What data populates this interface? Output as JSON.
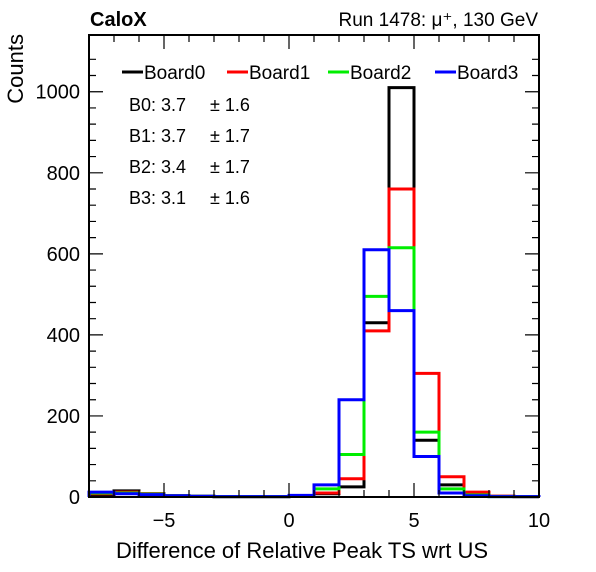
{
  "header": {
    "left": "CaloX",
    "right": "Run 1478:   μ⁺, 130 GeV"
  },
  "stats": [
    {
      "label": "B0: 3.7",
      "err": "± 1.6"
    },
    {
      "label": "B1: 3.7",
      "err": "± 1.7"
    },
    {
      "label": "B2: 3.4",
      "err": "± 1.7"
    },
    {
      "label": "B3: 3.1",
      "err": "± 1.6"
    }
  ],
  "chart_data": {
    "type": "histogram",
    "xlabel": "Difference of Relative Peak TS wrt US",
    "ylabel": "Counts",
    "xlim": [
      -8,
      10
    ],
    "ylim": [
      0,
      1140
    ],
    "xticks": [
      -5,
      0,
      5,
      10
    ],
    "xtick_labels": [
      "−5",
      "0",
      "5",
      "10"
    ],
    "yticks": [
      0,
      200,
      400,
      600,
      800,
      1000
    ],
    "ytick_labels": [
      "0",
      "200",
      "400",
      "600",
      "800",
      "1000"
    ],
    "bin_edges": [
      -8,
      -7,
      -6,
      -5,
      -4,
      -3,
      -2,
      -1,
      0,
      1,
      2,
      3,
      4,
      5,
      6,
      7,
      8,
      9,
      10
    ],
    "legend_position": "top",
    "series": [
      {
        "name": "Board0",
        "color": "#000000",
        "values": [
          5,
          15,
          8,
          3,
          2,
          1,
          1,
          1,
          2,
          8,
          25,
          430,
          1010,
          140,
          30,
          8,
          2,
          1
        ]
      },
      {
        "name": "Board1",
        "color": "#ff0000",
        "values": [
          8,
          12,
          8,
          3,
          2,
          1,
          1,
          1,
          2,
          10,
          45,
          410,
          760,
          305,
          50,
          12,
          2,
          1
        ]
      },
      {
        "name": "Board2",
        "color": "#00ee00",
        "values": [
          10,
          10,
          7,
          3,
          2,
          1,
          1,
          1,
          3,
          20,
          105,
          495,
          615,
          160,
          20,
          5,
          1,
          1
        ]
      },
      {
        "name": "Board3",
        "color": "#0000ff",
        "values": [
          12,
          8,
          6,
          3,
          2,
          1,
          1,
          1,
          4,
          30,
          240,
          610,
          460,
          100,
          10,
          3,
          1,
          1
        ]
      }
    ]
  }
}
